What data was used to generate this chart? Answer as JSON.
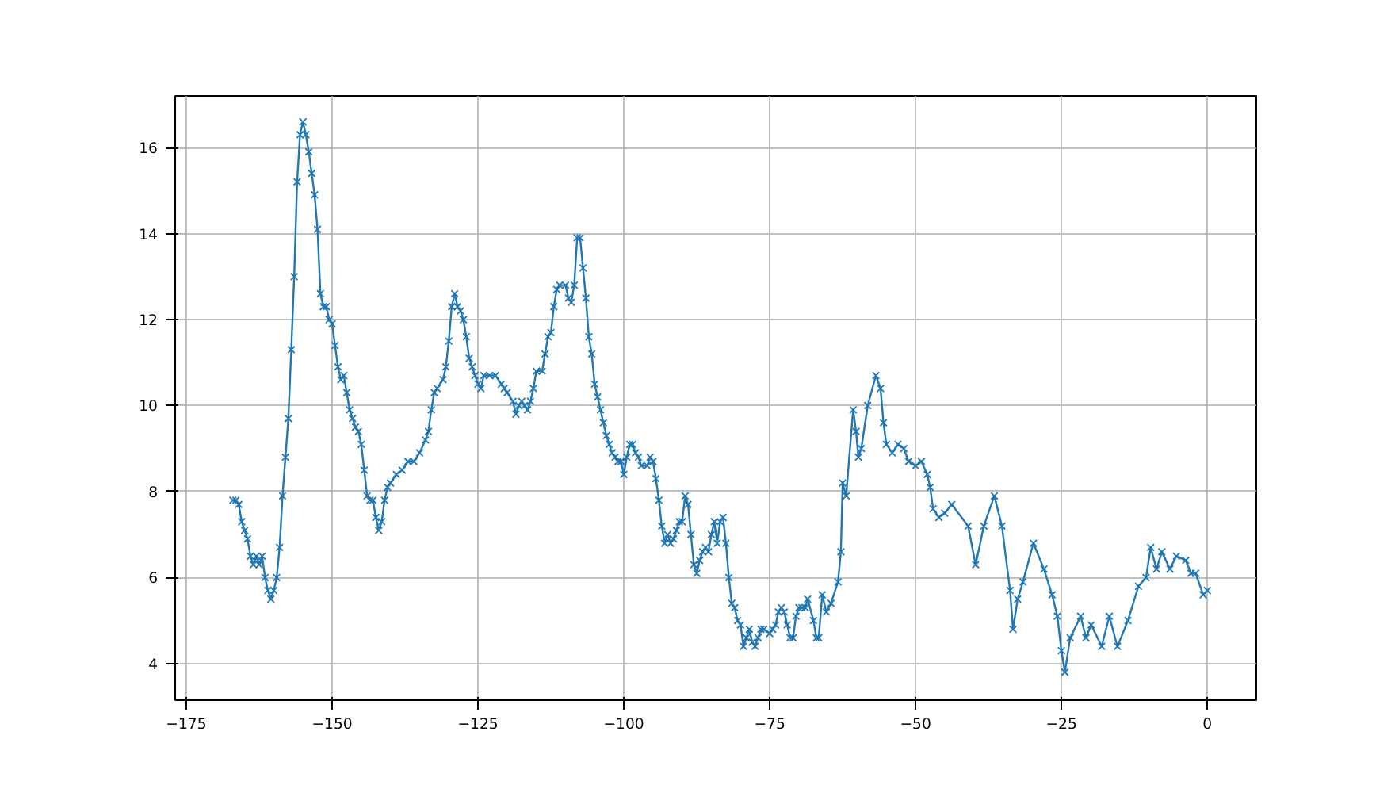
{
  "chart_data": {
    "type": "line",
    "marker": "cross",
    "line_style": "solid",
    "grid": true,
    "xlim": [
      -176.9,
      8.4
    ],
    "ylim": [
      3.15,
      17.2
    ],
    "xticks": [
      {
        "value": -175,
        "label": "−175"
      },
      {
        "value": -150,
        "label": "−150"
      },
      {
        "value": -125,
        "label": "−125"
      },
      {
        "value": -100,
        "label": "−100"
      },
      {
        "value": -75,
        "label": "−75"
      },
      {
        "value": -50,
        "label": "−50"
      },
      {
        "value": -25,
        "label": "−25"
      },
      0
    ],
    "yticks": [
      4,
      6,
      8,
      10,
      12,
      14,
      16
    ],
    "series": [
      {
        "color": "#1f77b4",
        "x": [
          -167,
          -166.5,
          -166,
          -165.5,
          -165,
          -164.5,
          -164,
          -163.5,
          -163,
          -162.5,
          -162,
          -161.5,
          -161,
          -160.5,
          -160,
          -159.5,
          -159,
          -158.5,
          -158,
          -157.5,
          -157,
          -156.5,
          -156,
          -155.5,
          -155,
          -154.5,
          -154,
          -153.5,
          -153,
          -152.5,
          -152,
          -151.5,
          -151,
          -150.5,
          -150,
          -149.5,
          -149,
          -148.5,
          -148,
          -147.5,
          -147,
          -146.5,
          -146,
          -145.5,
          -145,
          -144.5,
          -144,
          -143.5,
          -143,
          -142.5,
          -142,
          -141.5,
          -141,
          -140.5,
          -140,
          -139,
          -138,
          -137,
          -136,
          -135,
          -134,
          -133.5,
          -133,
          -132.5,
          -132,
          -131,
          -130.5,
          -130,
          -129.5,
          -129,
          -128.5,
          -128,
          -127.5,
          -127,
          -126.5,
          -126,
          -125.5,
          -125,
          -124.5,
          -124,
          -123,
          -122,
          -121,
          -120.5,
          -120,
          -119,
          -118.5,
          -118,
          -117.5,
          -117,
          -116.5,
          -116,
          -115.5,
          -115,
          -114,
          -113.5,
          -113,
          -112.5,
          -112,
          -111.5,
          -111,
          -110,
          -109.5,
          -109,
          -108.5,
          -108,
          -107.5,
          -107,
          -106.5,
          -106,
          -105.5,
          -105,
          -104.5,
          -104,
          -103.5,
          -103,
          -102.5,
          -102,
          -101.5,
          -101,
          -100.5,
          -100,
          -99.5,
          -99,
          -98.5,
          -98,
          -97.5,
          -97,
          -96,
          -95.5,
          -95,
          -94.5,
          -94,
          -93.5,
          -93,
          -92.5,
          -92,
          -91.5,
          -91,
          -90.5,
          -90,
          -89.5,
          -89,
          -88.5,
          -88,
          -87.5,
          -87,
          -86.5,
          -86,
          -85.5,
          -85,
          -84.5,
          -84,
          -83.5,
          -83,
          -82.5,
          -82,
          -81.5,
          -81,
          -80.5,
          -80,
          -79.5,
          -79,
          -78.5,
          -78,
          -77.5,
          -77,
          -76.5,
          -76,
          -75,
          -74.5,
          -74,
          -73.5,
          -73,
          -72.5,
          -72,
          -71.5,
          -71,
          -70.5,
          -70,
          -69.5,
          -68.9,
          -68.5,
          -67.5,
          -67,
          -66.6,
          -66,
          -65.3,
          -64.5,
          -63.3,
          -62.8,
          -62.5,
          -61.9,
          -60.7,
          -60.2,
          -59.8,
          -59.3,
          -58.2,
          -56.8,
          -56,
          -55.5,
          -55,
          -54,
          -53,
          -52,
          -51.2,
          -50,
          -49,
          -48,
          -47.5,
          -47,
          -46,
          -45,
          -43.8,
          -41,
          -39.7,
          -38.3,
          -36.5,
          -35.2,
          -33.8,
          -33.3,
          -32.5,
          -31.6,
          -29.8,
          -28,
          -26.6,
          -25.7,
          -25,
          -24.4,
          -23.5,
          -21.7,
          -20.8,
          -19.9,
          -18.1,
          -16.8,
          -15.4,
          -13.6,
          -11.8,
          -10.5,
          -9.7,
          -8.7,
          -7.8,
          -6.4,
          -5.3,
          -3.7,
          -2.8,
          -2,
          -0.7,
          0
        ],
        "values": [
          7.8,
          7.8,
          7.7,
          7.3,
          7.1,
          6.9,
          6.5,
          6.3,
          6.5,
          6.3,
          6.5,
          6.0,
          5.7,
          5.5,
          5.7,
          6.0,
          6.7,
          7.9,
          8.8,
          9.7,
          11.3,
          13.0,
          15.2,
          16.3,
          16.6,
          16.3,
          15.9,
          15.4,
          14.9,
          14.1,
          12.6,
          12.3,
          12.3,
          12.0,
          11.9,
          11.4,
          10.9,
          10.6,
          10.7,
          10.3,
          9.9,
          9.7,
          9.5,
          9.4,
          9.1,
          8.5,
          7.9,
          7.8,
          7.8,
          7.4,
          7.1,
          7.3,
          7.8,
          8.1,
          8.2,
          8.4,
          8.5,
          8.7,
          8.7,
          8.9,
          9.2,
          9.4,
          9.9,
          10.3,
          10.4,
          10.6,
          10.9,
          11.5,
          12.3,
          12.6,
          12.3,
          12.2,
          12.0,
          11.6,
          11.1,
          10.9,
          10.7,
          10.5,
          10.4,
          10.7,
          10.7,
          10.7,
          10.5,
          10.4,
          10.3,
          10.1,
          9.8,
          10.0,
          10.1,
          10.0,
          9.9,
          10.1,
          10.4,
          10.8,
          10.8,
          11.2,
          11.6,
          11.7,
          12.3,
          12.7,
          12.8,
          12.8,
          12.5,
          12.4,
          12.8,
          13.9,
          13.9,
          13.2,
          12.5,
          11.6,
          11.2,
          10.5,
          10.2,
          9.9,
          9.6,
          9.3,
          9.1,
          8.9,
          8.8,
          8.7,
          8.7,
          8.4,
          8.8,
          9.1,
          9.1,
          8.9,
          8.8,
          8.6,
          8.6,
          8.8,
          8.7,
          8.3,
          7.8,
          7.2,
          6.8,
          7.0,
          6.8,
          6.9,
          7.1,
          7.3,
          7.3,
          7.9,
          7.7,
          7.0,
          6.3,
          6.1,
          6.4,
          6.6,
          6.7,
          6.6,
          7.0,
          7.3,
          6.8,
          7.3,
          7.4,
          6.8,
          6.0,
          5.4,
          5.3,
          5.0,
          4.9,
          4.4,
          4.6,
          4.8,
          4.5,
          4.4,
          4.6,
          4.8,
          4.8,
          4.7,
          4.8,
          4.9,
          5.2,
          5.3,
          5.2,
          4.9,
          4.6,
          4.6,
          5.1,
          5.3,
          5.3,
          5.3,
          5.5,
          5.0,
          4.6,
          4.6,
          5.6,
          5.2,
          5.4,
          5.9,
          6.6,
          8.2,
          7.9,
          9.9,
          9.4,
          8.8,
          9.0,
          10.0,
          10.7,
          10.4,
          9.6,
          9.1,
          8.9,
          9.1,
          9.0,
          8.7,
          8.6,
          8.7,
          8.4,
          8.1,
          7.6,
          7.4,
          7.5,
          7.7,
          7.2,
          6.3,
          7.2,
          7.9,
          7.2,
          5.7,
          4.8,
          5.5,
          5.9,
          6.8,
          6.2,
          5.6,
          5.1,
          4.3,
          3.8,
          4.6,
          5.1,
          4.6,
          4.9,
          4.4,
          5.1,
          4.4,
          5.0,
          5.8,
          6.0,
          6.7,
          6.2,
          6.6,
          6.2,
          6.5,
          6.4,
          6.1,
          6.1,
          5.6,
          5.7
        ]
      }
    ]
  }
}
